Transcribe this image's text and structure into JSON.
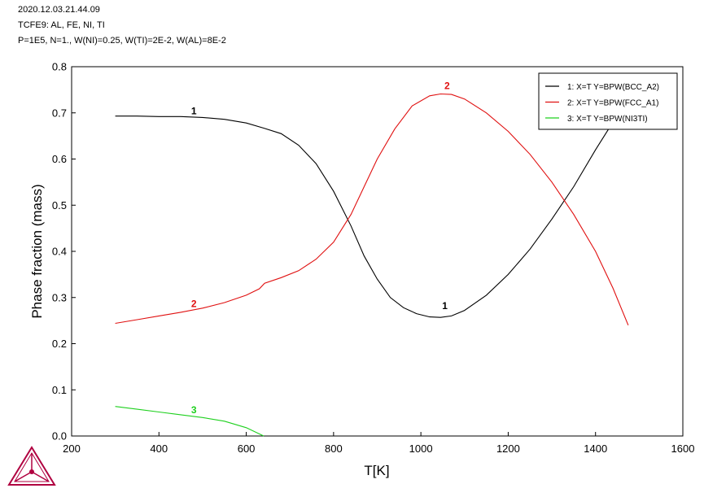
{
  "header": {
    "line1": "2020.12.03.21.44.09",
    "line2": "TCFE9: AL, FE, NI, TI",
    "line3": "P=1E5, N=1., W(NI)=0.25, W(TI)=2E-2, W(AL)=8E-2"
  },
  "chart_data": {
    "type": "line",
    "xlabel": "T[K]",
    "ylabel": "Phase fraction (mass)",
    "xlim": [
      200,
      1600
    ],
    "ylim": [
      0,
      0.8
    ],
    "xticks": [
      "200",
      "400",
      "600",
      "800",
      "1000",
      "1200",
      "1400",
      "1600"
    ],
    "yticks": [
      "0.0",
      "0.1",
      "0.2",
      "0.3",
      "0.4",
      "0.5",
      "0.6",
      "0.7",
      "0.8"
    ],
    "legend_position": "top-right",
    "grid": false,
    "series": [
      {
        "name": "1:  X=T  Y=BPW(BCC_A2)",
        "label": "1",
        "color": "#000000",
        "points": [
          [
            300,
            0.693
          ],
          [
            350,
            0.693
          ],
          [
            400,
            0.692
          ],
          [
            450,
            0.692
          ],
          [
            500,
            0.69
          ],
          [
            550,
            0.686
          ],
          [
            600,
            0.678
          ],
          [
            640,
            0.667
          ],
          [
            680,
            0.655
          ],
          [
            720,
            0.63
          ],
          [
            760,
            0.59
          ],
          [
            800,
            0.53
          ],
          [
            840,
            0.455
          ],
          [
            870,
            0.39
          ],
          [
            900,
            0.34
          ],
          [
            930,
            0.3
          ],
          [
            960,
            0.278
          ],
          [
            990,
            0.265
          ],
          [
            1020,
            0.258
          ],
          [
            1045,
            0.257
          ],
          [
            1070,
            0.26
          ],
          [
            1100,
            0.272
          ],
          [
            1150,
            0.305
          ],
          [
            1200,
            0.35
          ],
          [
            1250,
            0.405
          ],
          [
            1300,
            0.47
          ],
          [
            1350,
            0.54
          ],
          [
            1400,
            0.62
          ],
          [
            1450,
            0.695
          ],
          [
            1480,
            0.742
          ]
        ],
        "labels_at": [
          [
            480,
            0.692
          ],
          [
            1055,
            0.27
          ]
        ]
      },
      {
        "name": "2:  X=T  Y=BPW(FCC_A1)",
        "label": "2",
        "color": "#e01010",
        "points": [
          [
            300,
            0.244
          ],
          [
            350,
            0.252
          ],
          [
            400,
            0.26
          ],
          [
            450,
            0.268
          ],
          [
            500,
            0.277
          ],
          [
            550,
            0.289
          ],
          [
            600,
            0.305
          ],
          [
            630,
            0.319
          ],
          [
            642,
            0.331
          ],
          [
            680,
            0.343
          ],
          [
            720,
            0.358
          ],
          [
            760,
            0.383
          ],
          [
            800,
            0.42
          ],
          [
            840,
            0.48
          ],
          [
            870,
            0.54
          ],
          [
            900,
            0.6
          ],
          [
            940,
            0.665
          ],
          [
            980,
            0.715
          ],
          [
            1020,
            0.737
          ],
          [
            1045,
            0.741
          ],
          [
            1070,
            0.74
          ],
          [
            1100,
            0.73
          ],
          [
            1150,
            0.7
          ],
          [
            1200,
            0.66
          ],
          [
            1250,
            0.61
          ],
          [
            1300,
            0.55
          ],
          [
            1350,
            0.48
          ],
          [
            1400,
            0.4
          ],
          [
            1440,
            0.32
          ],
          [
            1475,
            0.24
          ]
        ],
        "labels_at": [
          [
            480,
            0.274
          ],
          [
            1060,
            0.746
          ]
        ]
      },
      {
        "name": "3:  X=T  Y=BPW(NI3TI)",
        "label": "3",
        "color": "#1ed01e",
        "points": [
          [
            300,
            0.064
          ],
          [
            350,
            0.058
          ],
          [
            400,
            0.052
          ],
          [
            450,
            0.046
          ],
          [
            500,
            0.04
          ],
          [
            550,
            0.032
          ],
          [
            600,
            0.018
          ],
          [
            640,
            0.0
          ]
        ],
        "labels_at": [
          [
            480,
            0.044
          ]
        ]
      }
    ]
  },
  "logo": {
    "icon": "thermo-calc-logo-icon",
    "color": "#b00040"
  }
}
